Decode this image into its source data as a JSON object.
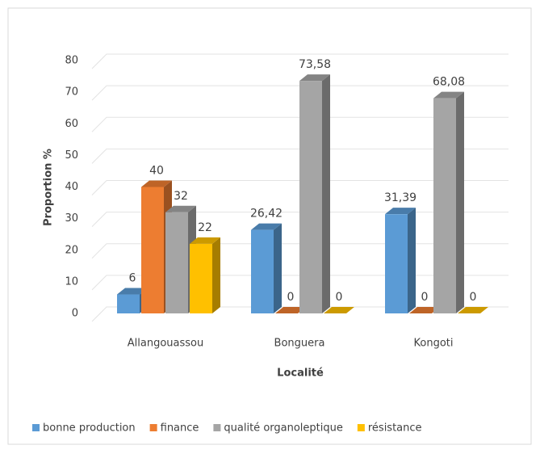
{
  "chart_data": {
    "type": "bar3d",
    "xlabel": "Localité",
    "ylabel": "Proportion %",
    "categories": [
      "Allangouassou",
      "Bonguera",
      "Kongoti"
    ],
    "series": [
      {
        "name": "bonne production",
        "color": "#5b9bd5",
        "values": [
          6,
          26.42,
          31.39
        ],
        "value_labels": [
          "6",
          "26,42",
          "31,39"
        ]
      },
      {
        "name": "finance",
        "color": "#ed7d31",
        "values": [
          40,
          0,
          0
        ]
      },
      {
        "name": "qualité organoleptique",
        "color": "#a5a5a5",
        "values": [
          32,
          73.58,
          68.08
        ],
        "value_labels": [
          "32",
          "73,58",
          "68,08"
        ]
      },
      {
        "name": "résistance",
        "color": "#ffc000",
        "values": [
          22,
          0,
          0
        ]
      }
    ],
    "ylim": [
      0,
      80
    ],
    "yticks": [
      0,
      10,
      20,
      30,
      40,
      50,
      60,
      70,
      80
    ],
    "grid": true,
    "legend": "bottom"
  }
}
